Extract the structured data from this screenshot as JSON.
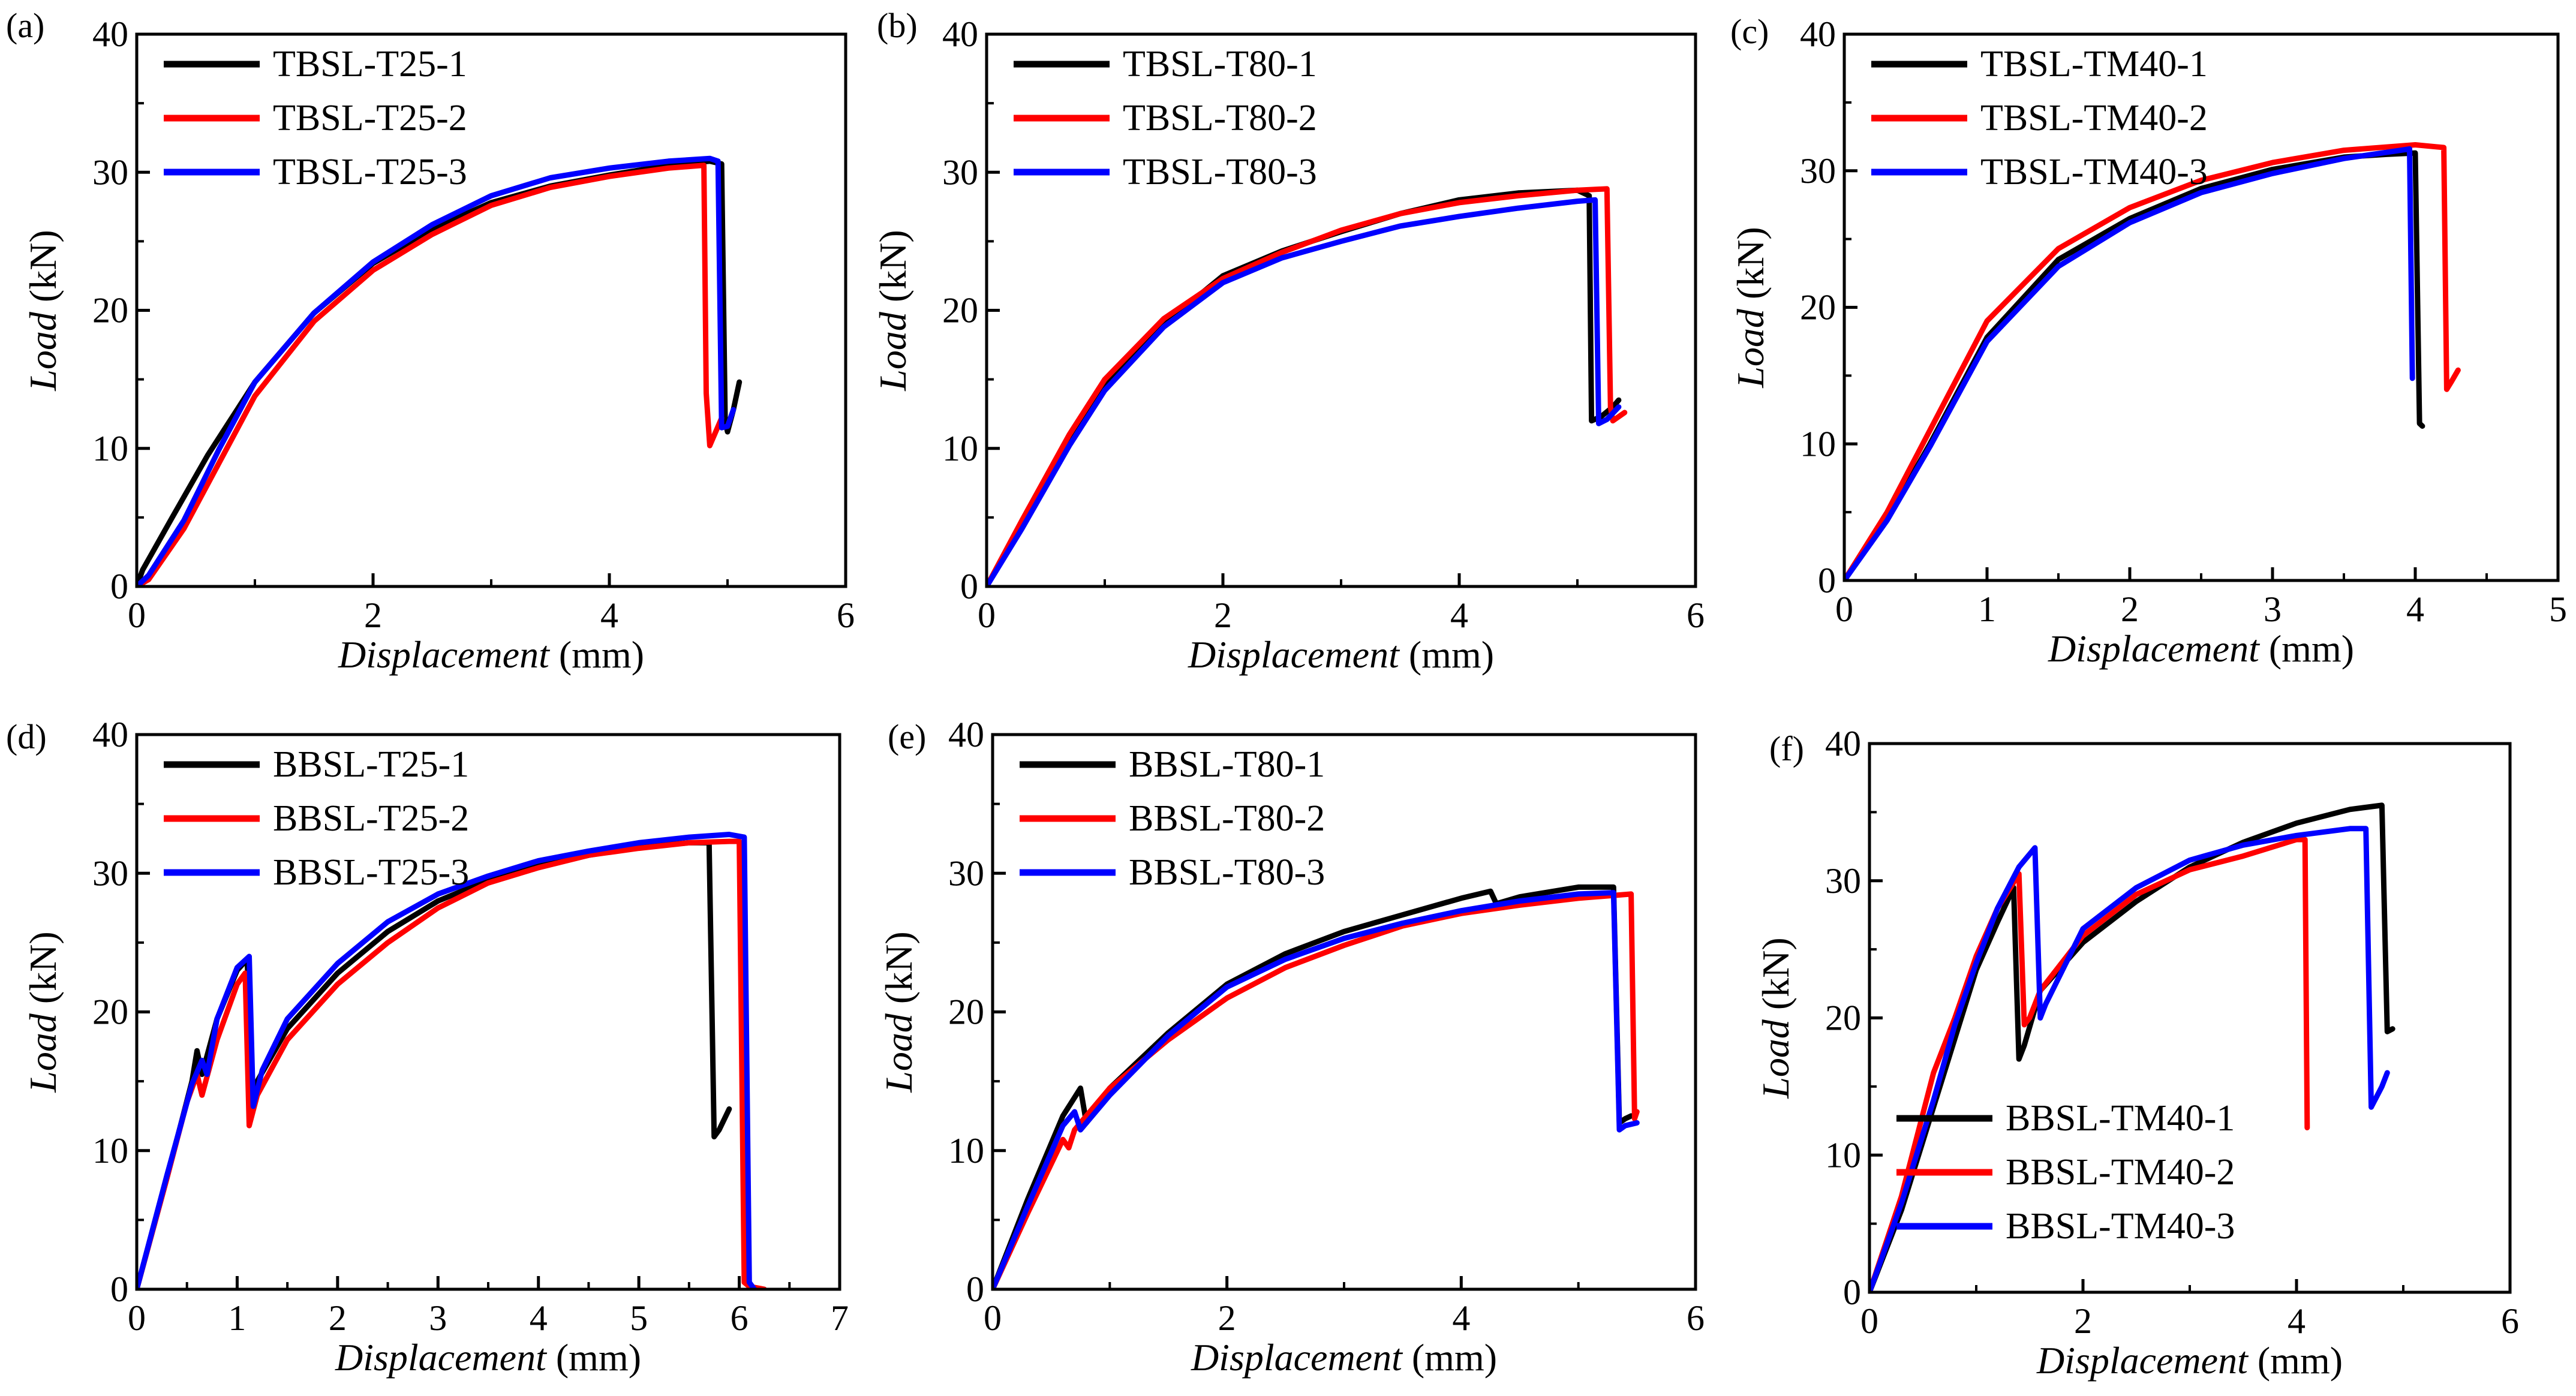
{
  "figure": {
    "colors": {
      "s1": "#000000",
      "s2": "#ff0000",
      "s3": "#0000ff"
    }
  },
  "chart_data": [
    {
      "type": "line",
      "panel": "(a)",
      "xlabel": "Displacement",
      "xunit": "(mm)",
      "ylabel": "Load",
      "yunit": "(kN)",
      "xlim": [
        0,
        6
      ],
      "ylim": [
        0,
        40
      ],
      "xticks": [
        "0",
        "2",
        "4",
        "6"
      ],
      "yticks": [
        "0",
        "10",
        "20",
        "30",
        "40"
      ],
      "legend_position": "top-left",
      "series": [
        {
          "name": "TBSL-T25-1",
          "color": "#000000",
          "x": [
            0,
            0.05,
            0.3,
            0.6,
            1.0,
            1.5,
            2.0,
            2.5,
            3.0,
            3.5,
            4.0,
            4.5,
            4.85,
            4.95,
            4.98,
            5.0,
            5.05,
            5.1
          ],
          "y": [
            0,
            1.2,
            5.0,
            9.5,
            14.8,
            19.8,
            23.4,
            25.9,
            27.8,
            29.0,
            29.8,
            30.5,
            30.8,
            30.6,
            12.0,
            11.2,
            12.8,
            14.8
          ]
        },
        {
          "name": "TBSL-T25-2",
          "color": "#ff0000",
          "x": [
            0,
            0.1,
            0.4,
            0.7,
            1.0,
            1.5,
            2.0,
            2.5,
            3.0,
            3.5,
            4.0,
            4.5,
            4.8,
            4.82,
            4.85,
            4.9,
            4.95
          ],
          "y": [
            0,
            0.5,
            4.2,
            9.0,
            13.8,
            19.2,
            22.9,
            25.5,
            27.6,
            28.9,
            29.7,
            30.3,
            30.5,
            14.0,
            10.2,
            11.2,
            12.2
          ]
        },
        {
          "name": "TBSL-T25-3",
          "color": "#0000ff",
          "x": [
            0,
            0.1,
            0.4,
            0.7,
            1.0,
            1.5,
            2.0,
            2.5,
            3.0,
            3.5,
            4.0,
            4.5,
            4.85,
            4.92,
            4.95,
            5.0,
            5.05
          ],
          "y": [
            0,
            0.8,
            4.8,
            10.0,
            14.8,
            19.8,
            23.5,
            26.2,
            28.3,
            29.6,
            30.3,
            30.8,
            31.0,
            30.8,
            11.5,
            11.6,
            12.8
          ]
        }
      ]
    },
    {
      "type": "line",
      "panel": "(b)",
      "xlabel": "Displacement",
      "xunit": "(mm)",
      "ylabel": "Load",
      "yunit": "(kN)",
      "xlim": [
        0,
        6
      ],
      "ylim": [
        0,
        40
      ],
      "xticks": [
        "0",
        "2",
        "4",
        "6"
      ],
      "yticks": [
        "0",
        "10",
        "20",
        "30",
        "40"
      ],
      "legend_position": "top-left",
      "series": [
        {
          "name": "TBSL-T80-1",
          "color": "#000000",
          "x": [
            0,
            0.3,
            0.7,
            1.0,
            1.5,
            2.0,
            2.5,
            3.0,
            3.5,
            4.0,
            4.5,
            5.0,
            5.1,
            5.12,
            5.2,
            5.3,
            5.35
          ],
          "y": [
            0,
            4.5,
            10.5,
            14.5,
            19.0,
            22.5,
            24.3,
            25.7,
            27.0,
            28.0,
            28.5,
            28.7,
            28.3,
            12.0,
            12.3,
            13.0,
            13.5
          ]
        },
        {
          "name": "TBSL-T80-2",
          "color": "#ff0000",
          "x": [
            0,
            0.3,
            0.7,
            1.0,
            1.5,
            2.0,
            2.5,
            3.0,
            3.5,
            4.0,
            4.5,
            5.0,
            5.25,
            5.28,
            5.3,
            5.4
          ],
          "y": [
            0,
            4.8,
            11.0,
            15.0,
            19.4,
            22.3,
            24.2,
            25.8,
            27.0,
            27.8,
            28.3,
            28.7,
            28.8,
            13.0,
            12.0,
            12.6
          ]
        },
        {
          "name": "TBSL-T80-3",
          "color": "#0000ff",
          "x": [
            0,
            0.3,
            0.7,
            1.0,
            1.5,
            2.0,
            2.5,
            3.0,
            3.5,
            4.0,
            4.5,
            5.0,
            5.15,
            5.18,
            5.25,
            5.35
          ],
          "y": [
            0,
            4.2,
            10.2,
            14.2,
            18.8,
            22.0,
            23.8,
            25.0,
            26.1,
            26.8,
            27.4,
            27.9,
            28.0,
            11.8,
            12.1,
            13.0
          ]
        }
      ]
    },
    {
      "type": "line",
      "panel": "(c)",
      "xlabel": "Displacement",
      "xunit": "(mm)",
      "ylabel": "Load",
      "yunit": "(kN)",
      "xlim": [
        0,
        5
      ],
      "ylim": [
        0,
        40
      ],
      "xticks": [
        "0",
        "1",
        "2",
        "3",
        "4",
        "5"
      ],
      "yticks": [
        "0",
        "10",
        "20",
        "30",
        "40"
      ],
      "legend_position": "top-left",
      "series": [
        {
          "name": "TBSL-TM40-1",
          "color": "#000000",
          "x": [
            0,
            0.3,
            0.6,
            1.0,
            1.5,
            2.0,
            2.5,
            3.0,
            3.5,
            3.8,
            4.0,
            4.03,
            4.05
          ],
          "y": [
            0,
            4.5,
            10.0,
            17.8,
            23.5,
            26.5,
            28.7,
            30.1,
            31.0,
            31.2,
            31.3,
            11.5,
            11.3
          ]
        },
        {
          "name": "TBSL-TM40-2",
          "color": "#ff0000",
          "x": [
            0,
            0.3,
            0.6,
            1.0,
            1.5,
            2.0,
            2.5,
            3.0,
            3.5,
            4.0,
            4.2,
            4.22,
            4.25,
            4.3
          ],
          "y": [
            0,
            5.0,
            11.0,
            19.0,
            24.3,
            27.3,
            29.3,
            30.6,
            31.5,
            31.9,
            31.7,
            14.0,
            14.5,
            15.4
          ]
        },
        {
          "name": "TBSL-TM40-3",
          "color": "#0000ff",
          "x": [
            0,
            0.3,
            0.6,
            1.0,
            1.5,
            2.0,
            2.5,
            3.0,
            3.5,
            3.9,
            3.96,
            3.98
          ],
          "y": [
            0,
            4.4,
            9.8,
            17.5,
            23.0,
            26.2,
            28.4,
            29.8,
            30.9,
            31.5,
            31.6,
            14.8
          ]
        }
      ]
    },
    {
      "type": "line",
      "panel": "(d)",
      "xlabel": "Displacement",
      "xunit": "(mm)",
      "ylabel": "Load",
      "yunit": "(kN)",
      "xlim": [
        0,
        7
      ],
      "ylim": [
        0,
        40
      ],
      "xticks": [
        "0",
        "1",
        "2",
        "3",
        "4",
        "5",
        "6",
        "7"
      ],
      "yticks": [
        "0",
        "10",
        "20",
        "30",
        "40"
      ],
      "legend_position": "top-left",
      "series": [
        {
          "name": "BBSL-T25-1",
          "color": "#000000",
          "x": [
            0,
            0.3,
            0.55,
            0.6,
            0.65,
            0.8,
            1.0,
            1.1,
            1.15,
            1.2,
            1.5,
            2.0,
            2.5,
            3.0,
            3.5,
            4.0,
            4.5,
            5.0,
            5.5,
            5.7,
            5.75,
            5.8,
            5.9
          ],
          "y": [
            0,
            8.0,
            15.0,
            17.2,
            15.5,
            19.5,
            23.0,
            23.8,
            13.5,
            15.0,
            18.8,
            22.8,
            25.8,
            28.0,
            29.5,
            30.5,
            31.3,
            31.9,
            32.2,
            32.2,
            11.0,
            11.5,
            13.0
          ]
        },
        {
          "name": "BBSL-T25-2",
          "color": "#ff0000",
          "x": [
            0,
            0.3,
            0.5,
            0.6,
            0.65,
            0.8,
            1.0,
            1.08,
            1.12,
            1.2,
            1.5,
            2.0,
            2.5,
            3.0,
            3.5,
            4.0,
            4.5,
            5.0,
            5.5,
            5.9,
            6.0,
            6.05,
            6.1,
            6.25
          ],
          "y": [
            0,
            8.0,
            13.5,
            15.5,
            14.0,
            18.0,
            22.0,
            22.8,
            11.8,
            14.0,
            18.0,
            22.0,
            25.0,
            27.5,
            29.3,
            30.4,
            31.3,
            31.8,
            32.2,
            32.3,
            32.3,
            0.5,
            0.2,
            0
          ]
        },
        {
          "name": "BBSL-T25-3",
          "color": "#0000ff",
          "x": [
            0,
            0.3,
            0.55,
            0.65,
            0.7,
            0.8,
            1.0,
            1.12,
            1.16,
            1.25,
            1.5,
            2.0,
            2.5,
            3.0,
            3.5,
            4.0,
            4.5,
            5.0,
            5.5,
            5.9,
            6.05,
            6.1,
            6.15
          ],
          "y": [
            0,
            8.2,
            14.8,
            16.5,
            15.5,
            19.5,
            23.2,
            24.0,
            13.2,
            15.8,
            19.5,
            23.5,
            26.5,
            28.5,
            29.8,
            30.9,
            31.6,
            32.2,
            32.6,
            32.8,
            32.6,
            0.5,
            0
          ]
        }
      ]
    },
    {
      "type": "line",
      "panel": "(e)",
      "xlabel": "Displacement",
      "xunit": "(mm)",
      "ylabel": "Load",
      "yunit": "(kN)",
      "xlim": [
        0,
        6
      ],
      "ylim": [
        0,
        40
      ],
      "xticks": [
        "0",
        "2",
        "4",
        "6"
      ],
      "yticks": [
        "0",
        "10",
        "20",
        "30",
        "40"
      ],
      "legend_position": "top-left",
      "series": [
        {
          "name": "BBSL-T80-1",
          "color": "#000000",
          "x": [
            0,
            0.3,
            0.6,
            0.75,
            0.8,
            1.0,
            1.5,
            2.0,
            2.5,
            3.0,
            3.5,
            4.0,
            4.25,
            4.3,
            4.5,
            5.0,
            5.3,
            5.35,
            5.4,
            5.45
          ],
          "y": [
            0,
            6.5,
            12.5,
            14.5,
            12.0,
            14.5,
            18.5,
            22.0,
            24.2,
            25.8,
            27.0,
            28.2,
            28.7,
            27.8,
            28.3,
            29.0,
            29.0,
            12.0,
            12.3,
            12.5
          ]
        },
        {
          "name": "BBSL-T80-2",
          "color": "#ff0000",
          "x": [
            0,
            0.3,
            0.6,
            0.65,
            0.7,
            0.8,
            1.0,
            1.5,
            2.0,
            2.5,
            3.0,
            3.5,
            4.0,
            4.5,
            5.0,
            5.45,
            5.48,
            5.5
          ],
          "y": [
            0,
            5.5,
            10.8,
            10.2,
            11.5,
            12.5,
            14.5,
            18.0,
            21.0,
            23.2,
            24.8,
            26.2,
            27.1,
            27.7,
            28.2,
            28.5,
            12.3,
            12.8
          ]
        },
        {
          "name": "BBSL-T80-3",
          "color": "#0000ff",
          "x": [
            0,
            0.3,
            0.6,
            0.7,
            0.75,
            1.0,
            1.5,
            2.0,
            2.5,
            3.0,
            3.5,
            4.0,
            4.5,
            5.0,
            5.3,
            5.35,
            5.4,
            5.5
          ],
          "y": [
            0,
            6.0,
            11.8,
            12.8,
            11.5,
            14.0,
            18.3,
            21.8,
            23.8,
            25.3,
            26.4,
            27.3,
            28.0,
            28.5,
            28.6,
            11.5,
            11.8,
            12.0
          ]
        }
      ]
    },
    {
      "type": "line",
      "panel": "(f)",
      "xlabel": "Displacement",
      "xunit": "(mm)",
      "ylabel": "Load",
      "yunit": "(kN)",
      "xlim": [
        0,
        6
      ],
      "ylim": [
        0,
        40
      ],
      "xticks": [
        "0",
        "2",
        "4",
        "6"
      ],
      "yticks": [
        "0",
        "10",
        "20",
        "30",
        "40"
      ],
      "legend_position": "bottom-left",
      "series": [
        {
          "name": "BBSL-TM40-1",
          "color": "#000000",
          "x": [
            0,
            0.3,
            0.6,
            0.8,
            1.0,
            1.2,
            1.35,
            1.4,
            1.45,
            1.6,
            2.0,
            2.5,
            3.0,
            3.5,
            4.0,
            4.5,
            4.8,
            4.85,
            4.9
          ],
          "y": [
            0,
            6.0,
            13.5,
            18.5,
            23.5,
            27.0,
            29.5,
            17.0,
            18.0,
            22.0,
            25.5,
            28.5,
            31.0,
            32.8,
            34.2,
            35.2,
            35.5,
            19.0,
            19.2
          ]
        },
        {
          "name": "BBSL-TM40-2",
          "color": "#ff0000",
          "x": [
            0,
            0.3,
            0.6,
            0.8,
            1.0,
            1.2,
            1.4,
            1.45,
            1.5,
            1.6,
            2.0,
            2.5,
            3.0,
            3.5,
            4.0,
            4.08,
            4.1
          ],
          "y": [
            0,
            7.0,
            16.0,
            20.0,
            24.5,
            28.0,
            30.5,
            19.5,
            20.0,
            22.0,
            26.0,
            29.0,
            30.8,
            31.8,
            33.0,
            33.0,
            12.0
          ]
        },
        {
          "name": "BBSL-TM40-3",
          "color": "#0000ff",
          "x": [
            0,
            0.3,
            0.6,
            0.8,
            1.0,
            1.2,
            1.4,
            1.55,
            1.6,
            1.65,
            2.0,
            2.5,
            3.0,
            3.5,
            4.0,
            4.5,
            4.65,
            4.7,
            4.8,
            4.85
          ],
          "y": [
            0,
            6.5,
            14.0,
            19.5,
            24.0,
            28.0,
            31.0,
            32.4,
            20.0,
            21.0,
            26.5,
            29.5,
            31.5,
            32.6,
            33.3,
            33.8,
            33.8,
            13.5,
            15.0,
            16.0
          ]
        }
      ]
    }
  ]
}
